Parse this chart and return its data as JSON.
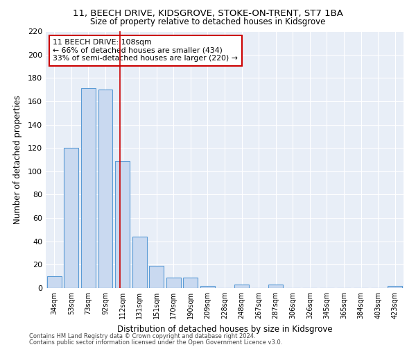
{
  "title1": "11, BEECH DRIVE, KIDSGROVE, STOKE-ON-TRENT, ST7 1BA",
  "title2": "Size of property relative to detached houses in Kidsgrove",
  "xlabel": "Distribution of detached houses by size in Kidsgrove",
  "ylabel": "Number of detached properties",
  "categories": [
    "34sqm",
    "53sqm",
    "73sqm",
    "92sqm",
    "112sqm",
    "131sqm",
    "151sqm",
    "170sqm",
    "190sqm",
    "209sqm",
    "228sqm",
    "248sqm",
    "267sqm",
    "287sqm",
    "306sqm",
    "326sqm",
    "345sqm",
    "365sqm",
    "384sqm",
    "403sqm",
    "423sqm"
  ],
  "values": [
    10,
    120,
    171,
    170,
    109,
    44,
    19,
    9,
    9,
    2,
    0,
    3,
    0,
    3,
    0,
    0,
    0,
    0,
    0,
    0,
    2
  ],
  "bar_color": "#c9d9f0",
  "bar_edge_color": "#5b9bd5",
  "vline_x": 3.84,
  "vline_color": "#cc0000",
  "annotation_line1": "11 BEECH DRIVE: 108sqm",
  "annotation_line2": "← 66% of detached houses are smaller (434)",
  "annotation_line3": "33% of semi-detached houses are larger (220) →",
  "annotation_box_color": "#cc0000",
  "footer1": "Contains HM Land Registry data © Crown copyright and database right 2024.",
  "footer2": "Contains public sector information licensed under the Open Government Licence v3.0.",
  "ylim": [
    0,
    220
  ],
  "yticks": [
    0,
    20,
    40,
    60,
    80,
    100,
    120,
    140,
    160,
    180,
    200,
    220
  ],
  "bg_color": "#e8eef7",
  "grid_color": "#ffffff"
}
